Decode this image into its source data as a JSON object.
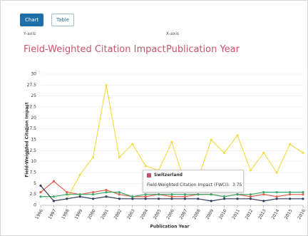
{
  "buttons": [
    "Chart",
    "Table"
  ],
  "selectors": [
    {
      "label": "Y-axis",
      "metric": "Field-Weighted Citation Impact"
    },
    {
      "label": "X-axis",
      "metric": "Publication Year"
    }
  ],
  "tooltip": {
    "title": "Switzerland",
    "text": "Field-Weighted Citation Impact (FWCI):",
    "value": "3.75"
  },
  "chart_data": {
    "type": "line",
    "y_label": "Field-Weighted Citation Impact",
    "x_label": "Publication Year",
    "x": [
      1996,
      1997,
      1998,
      1999,
      2000,
      2001,
      2002,
      2003,
      2004,
      2005,
      2006,
      2007,
      2008,
      2009,
      2010,
      2011,
      2012,
      2013,
      2014,
      2015,
      2016
    ],
    "xlim": [
      1996,
      2016
    ],
    "xticks": [
      1996,
      1997,
      1998,
      1999,
      2000,
      2001,
      2002,
      2003,
      2004,
      2005,
      2006,
      2007,
      2008,
      2009,
      2010,
      2011,
      2012,
      2013,
      2014,
      2015,
      2016
    ],
    "ylim": [
      0,
      30
    ],
    "yticks": [
      0,
      2.5,
      5,
      7.5,
      10,
      12.5,
      15,
      17.5,
      20,
      22.5,
      25,
      27.5,
      30
    ],
    "grid": true,
    "series": [
      {
        "color": "#f2dc4a",
        "values": [
          null,
          null,
          1.5,
          7,
          11,
          27.5,
          11,
          14,
          9,
          8,
          14.5,
          5,
          6,
          15,
          12,
          16,
          8,
          12,
          7.5,
          14,
          12
        ]
      },
      {
        "color": "#e0604f",
        "values": [
          3,
          5.5,
          3,
          2.5,
          3,
          3.5,
          2.5,
          2,
          2,
          2.5,
          2,
          2,
          2.5,
          2.5,
          2,
          2.5,
          2,
          2.5,
          2,
          2.5,
          2.5
        ]
      },
      {
        "color": "#3aaa6a",
        "values": [
          2,
          2,
          2.5,
          2.5,
          2.5,
          3,
          3,
          2,
          2.5,
          2.5,
          2.5,
          2.5,
          2.5,
          2.5,
          2,
          2.5,
          2.5,
          3,
          3,
          3,
          3
        ]
      },
      {
        "color": "#2e3b58",
        "values": [
          4.5,
          1,
          1.5,
          2,
          1.5,
          2,
          1.5,
          1.5,
          1.5,
          1.5,
          1.5,
          1.5,
          1.5,
          1,
          1.5,
          1.5,
          1.5,
          1,
          1.5,
          1.5,
          1.5
        ]
      }
    ]
  }
}
